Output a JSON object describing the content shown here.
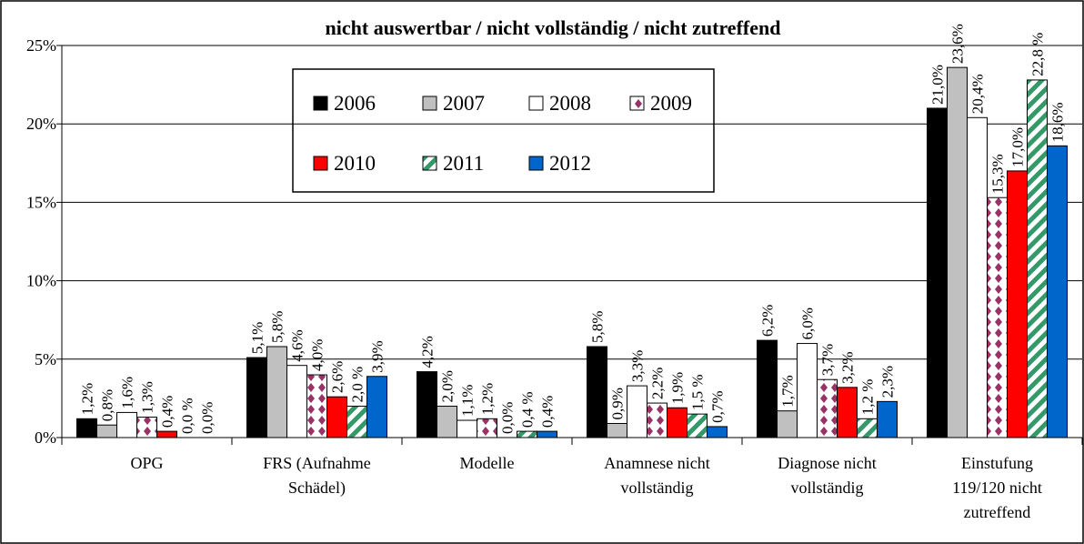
{
  "chart_data": {
    "type": "bar",
    "title": "nicht auswertbar / nicht vollständig / nicht zutreffend",
    "categories": [
      "OPG",
      "FRS (Aufnahme Schädel)",
      "Modelle",
      "Anamnese nicht vollständig",
      "Diagnose nicht vollständig",
      "Einstufung 119/120 nicht zutreffend"
    ],
    "series": [
      {
        "name": "2006",
        "color": "#000000",
        "values": [
          1.2,
          5.1,
          4.2,
          5.8,
          6.2,
          21.0
        ],
        "value_labels": [
          "1,2%",
          "5,1%",
          "4,2%",
          "5,8%",
          "6,2%",
          "21,0%"
        ]
      },
      {
        "name": "2007",
        "color": "#c0c0c0",
        "values": [
          0.8,
          5.8,
          2.0,
          0.9,
          1.7,
          23.6
        ],
        "value_labels": [
          "0,8%",
          "5,8%",
          "2,0%",
          "0,9%",
          "1,7%",
          "23,6%"
        ]
      },
      {
        "name": "2008",
        "color": "#ffffff",
        "values": [
          1.6,
          4.6,
          1.1,
          3.3,
          6.0,
          20.4
        ],
        "value_labels": [
          "1,6%",
          "4,6%",
          "1,1%",
          "3,3%",
          "6,0%",
          "20,4%"
        ]
      },
      {
        "name": "2009",
        "color": "#993366",
        "pattern": "dots",
        "values": [
          1.3,
          4.0,
          1.2,
          2.2,
          3.7,
          15.3
        ],
        "value_labels": [
          "1,3%",
          "4,0%",
          "1,2%",
          "2,2%",
          "3,7%",
          "15,3%"
        ]
      },
      {
        "name": "2010",
        "color": "#ff0000",
        "values": [
          0.4,
          2.6,
          0.0,
          1.9,
          3.2,
          17.0
        ],
        "value_labels": [
          "0,4%",
          "2,6%",
          "0,0%",
          "1,9%",
          "3,2%",
          "17,0%"
        ]
      },
      {
        "name": "2011",
        "color": "#339966",
        "pattern": "stripes",
        "values": [
          0.0,
          2.0,
          0.4,
          1.5,
          1.2,
          22.8
        ],
        "value_labels": [
          "0,0 %",
          "2,0 %",
          "0,4 %",
          "1,5 %",
          "1,2 %",
          "22,8 %"
        ]
      },
      {
        "name": "2012",
        "color": "#0066cc",
        "values": [
          0.0,
          3.9,
          0.4,
          0.7,
          2.3,
          18.6
        ],
        "value_labels": [
          "0,0%",
          "3,9%",
          "0,4%",
          "0,7%",
          "2,3%",
          "18,6%"
        ]
      }
    ],
    "ylim": [
      0,
      25
    ],
    "yticks": [
      {
        "value": 0,
        "label": "0%"
      },
      {
        "value": 5,
        "label": "5%"
      },
      {
        "value": 10,
        "label": "10%"
      },
      {
        "value": 15,
        "label": "15%"
      },
      {
        "value": 20,
        "label": "20%"
      },
      {
        "value": 25,
        "label": "25%"
      }
    ],
    "grid": true
  }
}
